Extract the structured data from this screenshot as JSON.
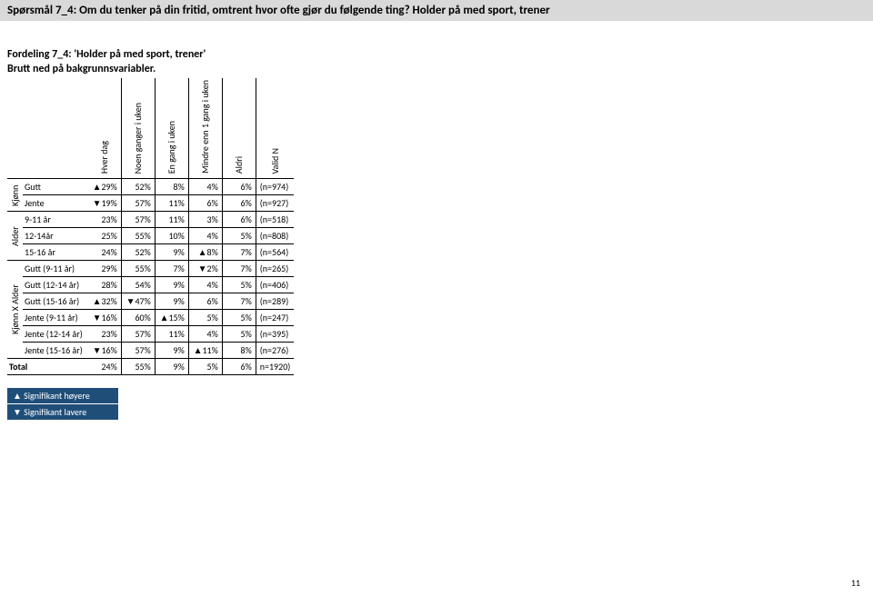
{
  "question_bar": "Spørsmål 7_4: Om du tenker på din fritid, omtrent hvor ofte gjør du følgende ting?  Holder på med sport, trener",
  "subtitle_line1": "Fordeling 7_4: 'Holder på med sport, trener'",
  "subtitle_line2": "Brutt ned på bakgrunnsvariabler.",
  "columns": [
    "Hver dag",
    "Noen ganger  i uken",
    "En gang  i uken",
    "Mindre enn 1 gang i uken",
    "Aldri",
    "Valid N"
  ],
  "groups": [
    {
      "label": "Kjønn",
      "rows": [
        {
          "label": "Gutt",
          "cells": [
            {
              "v": "29%",
              "d": "up"
            },
            {
              "v": "52%"
            },
            {
              "v": "8%"
            },
            {
              "v": "4%"
            },
            {
              "v": "6%"
            }
          ],
          "n": "(n=974)"
        },
        {
          "label": "Jente",
          "cells": [
            {
              "v": "19%",
              "d": "down"
            },
            {
              "v": "57%"
            },
            {
              "v": "11%"
            },
            {
              "v": "6%"
            },
            {
              "v": "6%"
            }
          ],
          "n": "(n=927)"
        }
      ]
    },
    {
      "label": "Alder",
      "rows": [
        {
          "label": "9-11 år",
          "cells": [
            {
              "v": "23%"
            },
            {
              "v": "57%"
            },
            {
              "v": "11%"
            },
            {
              "v": "3%"
            },
            {
              "v": "6%"
            }
          ],
          "n": "(n=518)"
        },
        {
          "label": "12-14år",
          "cells": [
            {
              "v": "25%"
            },
            {
              "v": "55%"
            },
            {
              "v": "10%"
            },
            {
              "v": "4%"
            },
            {
              "v": "5%"
            }
          ],
          "n": "(n=808)"
        },
        {
          "label": "15-16 år",
          "cells": [
            {
              "v": "24%"
            },
            {
              "v": "52%"
            },
            {
              "v": "9%"
            },
            {
              "v": "8%",
              "d": "up"
            },
            {
              "v": "7%"
            }
          ],
          "n": "(n=564)"
        }
      ]
    },
    {
      "label": "Kjønn X Alder",
      "rows": [
        {
          "label": "Gutt (9-11 år)",
          "cells": [
            {
              "v": "29%"
            },
            {
              "v": "55%"
            },
            {
              "v": "7%"
            },
            {
              "v": "2%",
              "d": "down"
            },
            {
              "v": "7%"
            }
          ],
          "n": "(n=265)"
        },
        {
          "label": "Gutt (12-14 år)",
          "cells": [
            {
              "v": "28%"
            },
            {
              "v": "54%"
            },
            {
              "v": "9%"
            },
            {
              "v": "4%"
            },
            {
              "v": "5%"
            }
          ],
          "n": "(n=406)"
        },
        {
          "label": "Gutt (15-16 år)",
          "cells": [
            {
              "v": "32%",
              "d": "up"
            },
            {
              "v": "47%",
              "d": "down"
            },
            {
              "v": "9%"
            },
            {
              "v": "6%"
            },
            {
              "v": "7%"
            }
          ],
          "n": "(n=289)"
        },
        {
          "label": "Jente (9-11 år)",
          "cells": [
            {
              "v": "16%",
              "d": "down"
            },
            {
              "v": "60%"
            },
            {
              "v": "15%",
              "d": "up"
            },
            {
              "v": "5%"
            },
            {
              "v": "5%"
            }
          ],
          "n": "(n=247)"
        },
        {
          "label": "Jente (12-14 år)",
          "cells": [
            {
              "v": "23%"
            },
            {
              "v": "57%"
            },
            {
              "v": "11%"
            },
            {
              "v": "4%"
            },
            {
              "v": "5%"
            }
          ],
          "n": "(n=395)"
        },
        {
          "label": "Jente (15-16 år)",
          "cells": [
            {
              "v": "16%",
              "d": "down"
            },
            {
              "v": "57%"
            },
            {
              "v": "9%"
            },
            {
              "v": "11%",
              "d": "up"
            },
            {
              "v": "8%"
            }
          ],
          "n": "(n=276)"
        }
      ]
    }
  ],
  "total": {
    "label": "Total",
    "cells": [
      {
        "v": "24%"
      },
      {
        "v": "55%"
      },
      {
        "v": "9%"
      },
      {
        "v": "5%"
      },
      {
        "v": "6%"
      }
    ],
    "n": "n=1920)"
  },
  "legend_high": "▲ Signifikant høyere",
  "legend_low": "▼ Signifikant lavere",
  "page_number": "11",
  "colors": {
    "bar_bg": "#d9d9d9",
    "legend_bg": "#1f4e79",
    "legend_fg": "#ffffff",
    "border": "#000000"
  }
}
